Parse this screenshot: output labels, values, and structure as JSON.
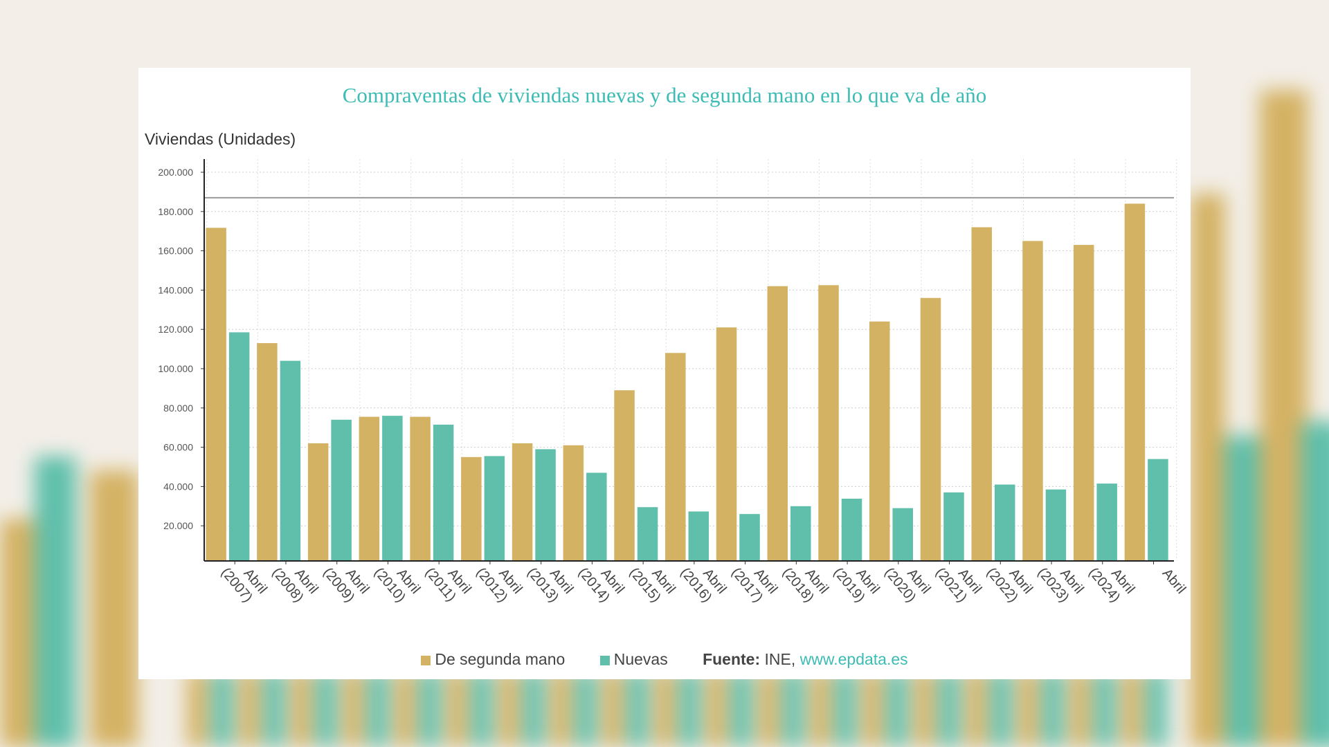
{
  "chart_data": {
    "type": "bar",
    "title": "Compraventas de viviendas nuevas y de segunda mano en lo que va de año",
    "ylabel": "Viviendas (Unidades)",
    "xlabel": "",
    "ylim": [
      0,
      200000
    ],
    "yticks": [
      "20.000",
      "40.000",
      "60.000",
      "80.000",
      "100.000",
      "120.000",
      "140.000",
      "160.000",
      "180.000",
      "200.000"
    ],
    "grid": true,
    "legend_position": "bottom",
    "categories": [
      "Abril (2007)",
      "Abril (2008)",
      "Abril (2009)",
      "Abril (2010)",
      "Abril (2011)",
      "Abril (2012)",
      "Abril (2013)",
      "Abril (2014)",
      "Abril (2015)",
      "Abril (2016)",
      "Abril (2017)",
      "Abril (2018)",
      "Abril (2019)",
      "Abril (2020)",
      "Abril (2021)",
      "Abril (2022)",
      "Abril (2023)",
      "Abril (2024)",
      "Abril"
    ],
    "series": [
      {
        "name": "De segunda mano",
        "color": "#d4b264",
        "values": [
          171700,
          113000,
          62000,
          75500,
          75500,
          55000,
          62000,
          61000,
          89000,
          108000,
          121000,
          142000,
          142500,
          124000,
          136000,
          172000,
          165000,
          163000,
          184000
        ]
      },
      {
        "name": "Nuevas",
        "color": "#5fbfab",
        "values": [
          118500,
          104000,
          74000,
          76000,
          71500,
          55500,
          59000,
          47000,
          29500,
          27300,
          26000,
          30000,
          33800,
          29000,
          37000,
          41000,
          38500,
          41500,
          54000
        ]
      }
    ],
    "reference_line": 187000
  },
  "legend": {
    "source_label": "Fuente:",
    "source_text": " INE, ",
    "source_link": "www.epdata.es"
  }
}
